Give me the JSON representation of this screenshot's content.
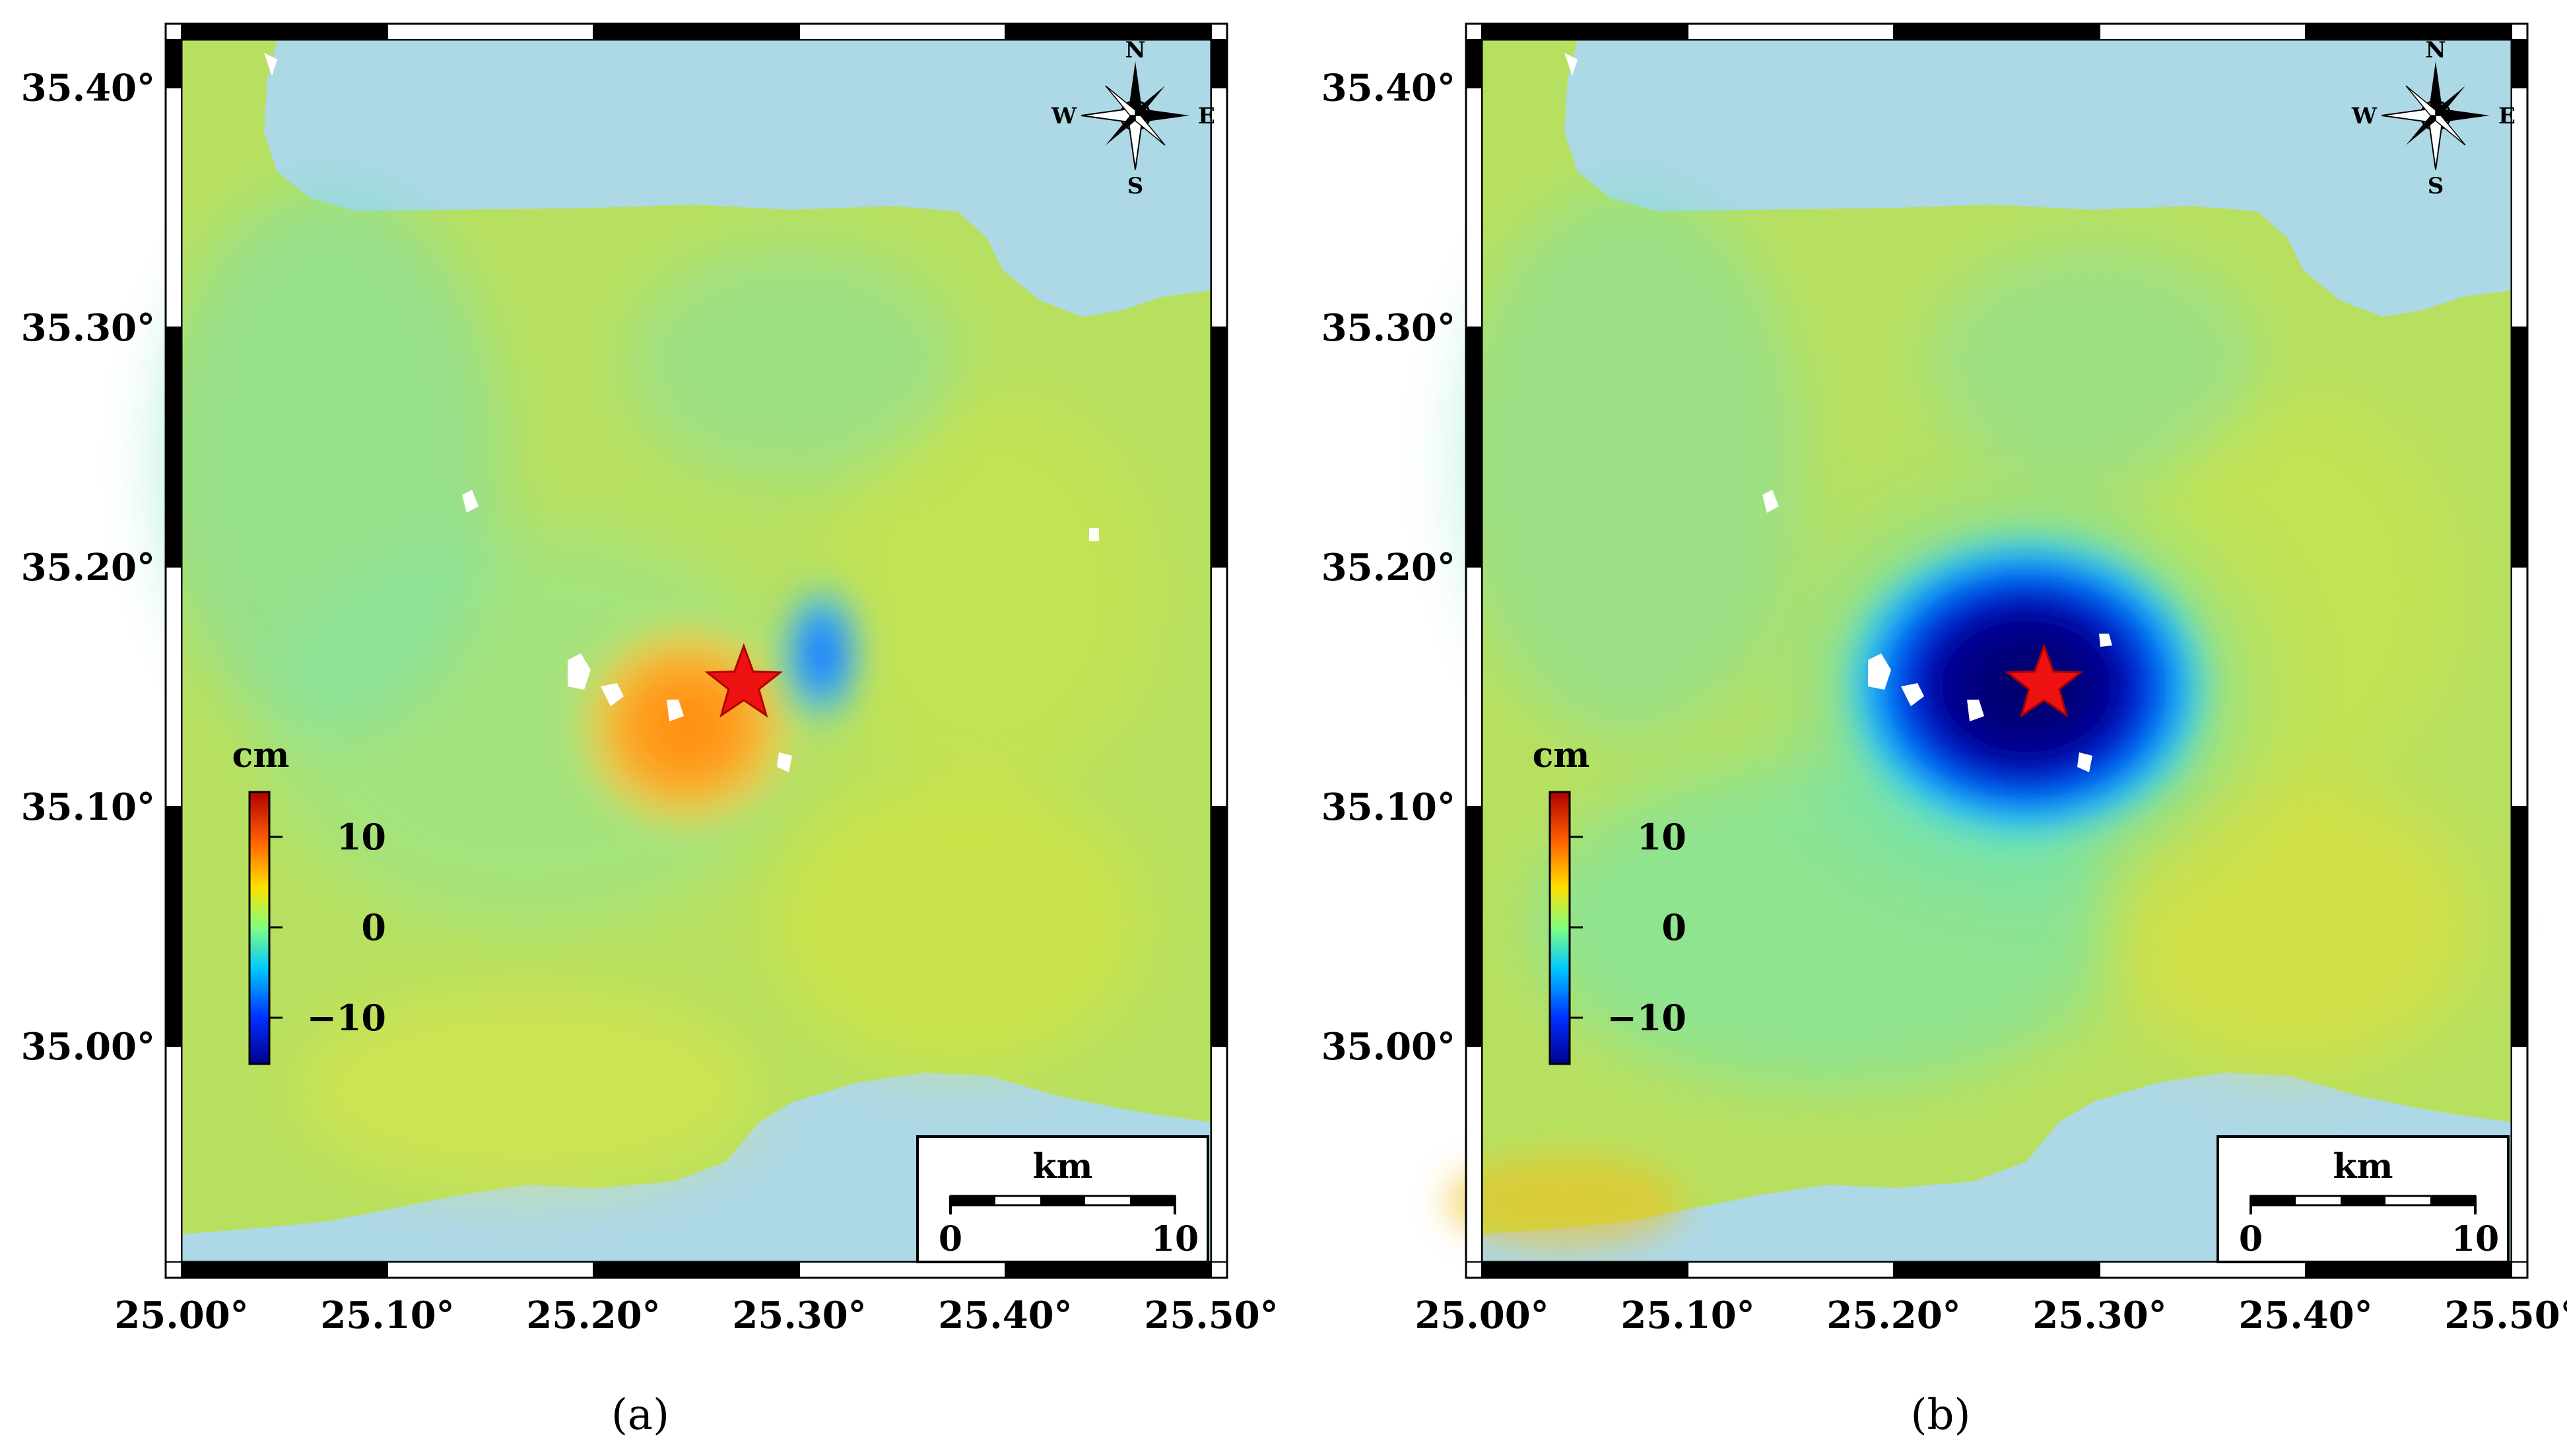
{
  "figure": {
    "panels": [
      {
        "id": "a",
        "caption": "(a)",
        "legend_unit": "cm",
        "legend_ticks": [
          "10",
          "0",
          "−10"
        ],
        "scale_title": "km",
        "scale_min": "0",
        "scale_max": "10",
        "compass": {
          "n": "N",
          "s": "S",
          "e": "E",
          "w": "W"
        },
        "epicenter": {
          "lon": 25.273,
          "lat": 35.151
        },
        "anomalies": [
          {
            "name": "uplift-lobe",
            "lon": 25.245,
            "lat": 35.14,
            "value_cm": 5
          },
          {
            "name": "subsidence-lobe",
            "lon": 25.31,
            "lat": 35.165,
            "value_cm": -7
          }
        ]
      },
      {
        "id": "b",
        "caption": "(b)",
        "legend_unit": "cm",
        "legend_ticks": [
          "10",
          "0",
          "−10"
        ],
        "scale_title": "km",
        "scale_min": "0",
        "scale_max": "10",
        "compass": {
          "n": "N",
          "s": "S",
          "e": "E",
          "w": "W"
        },
        "epicenter": {
          "lon": 25.273,
          "lat": 35.151
        },
        "anomalies": [
          {
            "name": "subsidence-bowl",
            "lon": 25.275,
            "lat": 35.15,
            "value_cm": -12
          }
        ]
      }
    ],
    "lat_labels": [
      "35.40°",
      "35.30°",
      "35.20°",
      "35.10°",
      "35.00°"
    ],
    "lon_labels": [
      "25.00°",
      "25.10°",
      "25.20°",
      "25.30°",
      "25.40°",
      "25.50°"
    ],
    "colors": {
      "sea": "#add8e6",
      "land_base": "#b8e060",
      "epicenter": "#ee1111"
    }
  }
}
